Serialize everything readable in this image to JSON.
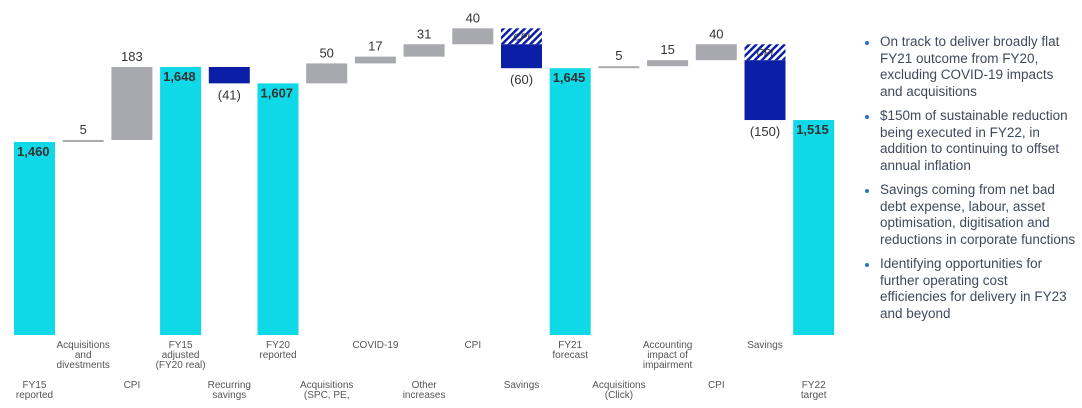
{
  "chart_data": {
    "type": "waterfall",
    "categories": [
      [
        "FY15",
        "reported"
      ],
      [
        "Acquisitions",
        "and",
        "divestments"
      ],
      [
        "CPI"
      ],
      [
        "FY15",
        "adjusted",
        "(FY20 real)"
      ],
      [
        "Recurring",
        "savings"
      ],
      [
        "FY20",
        "reported"
      ],
      [
        "Acquisitions",
        "(SPC, PE,"
      ],
      [
        "COVID-19"
      ],
      [
        "Other",
        "increases"
      ],
      [
        "CPI"
      ],
      [
        "Savings"
      ],
      [
        "FY21",
        "forecast"
      ],
      [
        "Acquisitions",
        "(Click)"
      ],
      [
        "Accounting",
        "impact of",
        "impairment"
      ],
      [
        "CPI"
      ],
      [
        "Savings"
      ],
      [
        "FY22",
        "target"
      ]
    ],
    "values": [
      1460,
      5,
      183,
      1648,
      -41,
      1607,
      50,
      17,
      31,
      40,
      -60,
      1645,
      5,
      15,
      40,
      -150,
      1515
    ],
    "value_labels": [
      "1,460",
      "5",
      "183",
      "1,648",
      "(41)",
      "1,607",
      "50",
      "17",
      "31",
      "40",
      "(60)",
      "1,645",
      "5",
      "15",
      "40",
      "(150)",
      "1,515"
    ],
    "kinds": [
      "total",
      "change",
      "change",
      "total",
      "change",
      "total",
      "change",
      "change",
      "change",
      "change",
      "change",
      "total",
      "change",
      "change",
      "change",
      "change",
      "total"
    ],
    "offsets": [
      null,
      null,
      null,
      null,
      null,
      null,
      null,
      null,
      null,
      null,
      40,
      null,
      null,
      null,
      null,
      40,
      null
    ],
    "offset_label": "CPI",
    "colors": {
      "total": "#0fd9e6",
      "increase": "#a7a9ae",
      "decrease": "#0b1fa6"
    },
    "ylim": [
      976,
      1816
    ]
  },
  "notes": [
    "On track to deliver broadly flat FY21 outcome from FY20, excluding COVID-19 impacts and acquisitions",
    "$150m of sustainable reduction being executed in FY22, in addition to continuing to offset annual inflation",
    "Savings coming from net bad debt expense, labour, asset optimisation, digitisation and reductions in corporate functions",
    "Identifying opportunities for further operating cost efficiencies for delivery in FY23 and beyond"
  ]
}
